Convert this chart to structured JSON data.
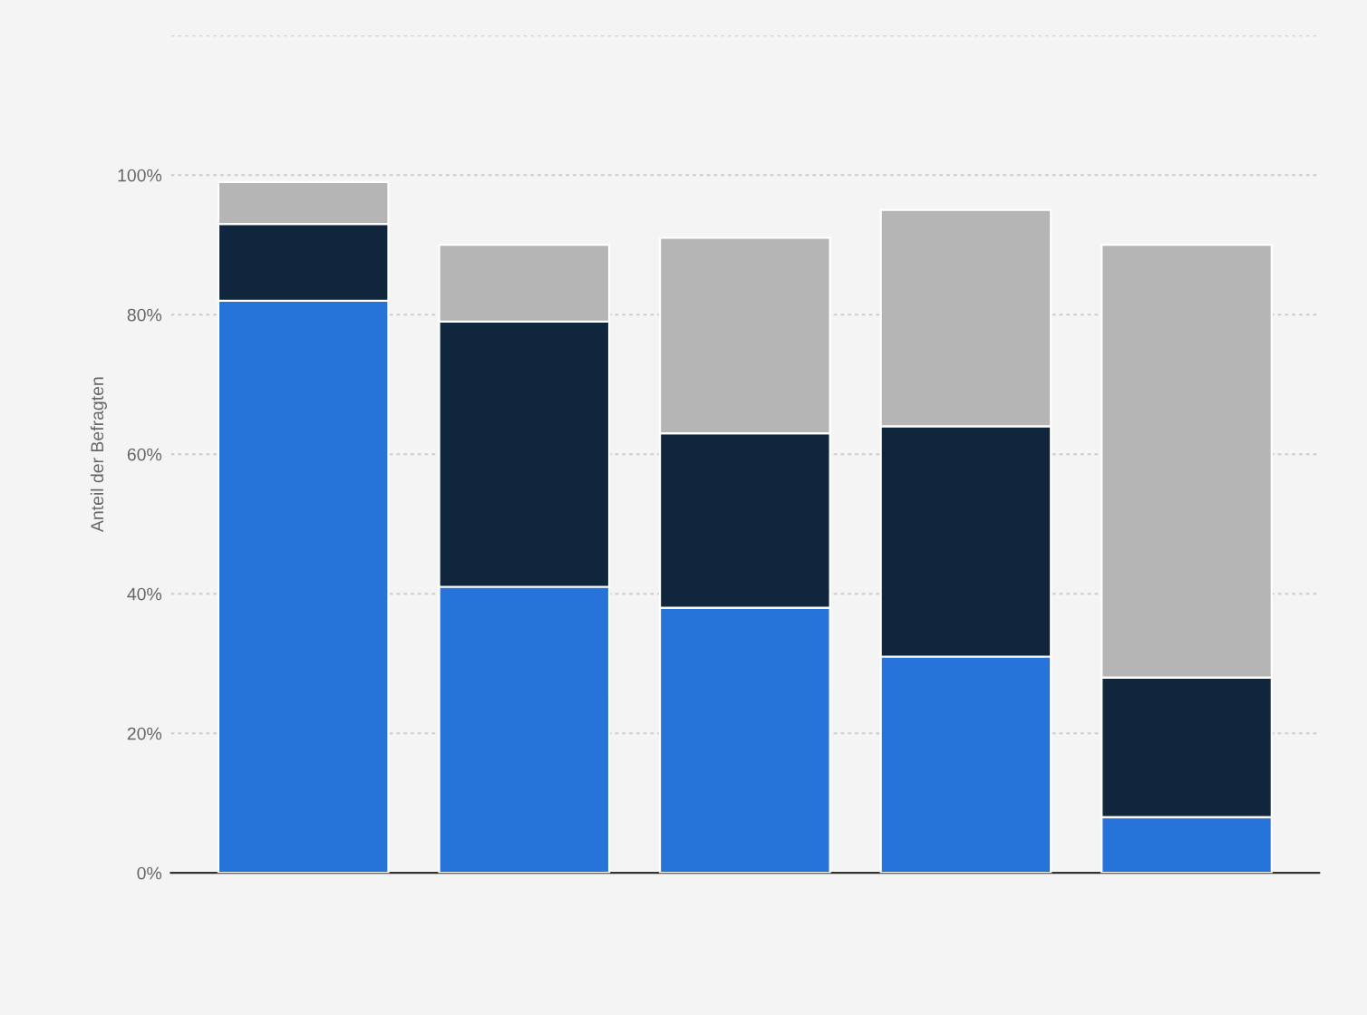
{
  "chart_data": {
    "type": "bar",
    "stacked": true,
    "ylabel": "Anteil der Befragten",
    "categories": [
      null,
      null,
      null,
      null,
      null
    ],
    "series": [
      {
        "color": "#2673d9",
        "values": [
          82,
          41,
          38,
          31,
          8
        ]
      },
      {
        "color": "#0f263d",
        "values": [
          11,
          38,
          25,
          33,
          20
        ]
      },
      {
        "color": "#b5b5b5",
        "values": [
          6,
          11,
          28,
          31,
          62
        ]
      }
    ],
    "ylim": [
      0,
      120
    ],
    "yticks": [
      {
        "value": 0,
        "label": "0%"
      },
      {
        "value": 20,
        "label": "20%"
      },
      {
        "value": 40,
        "label": "40%"
      },
      {
        "value": 60,
        "label": "60%"
      },
      {
        "value": 80,
        "label": "80%"
      },
      {
        "value": 100,
        "label": "100%"
      },
      {
        "value": 120,
        "label": null
      }
    ],
    "grid": "y",
    "tick_labels": "y"
  }
}
